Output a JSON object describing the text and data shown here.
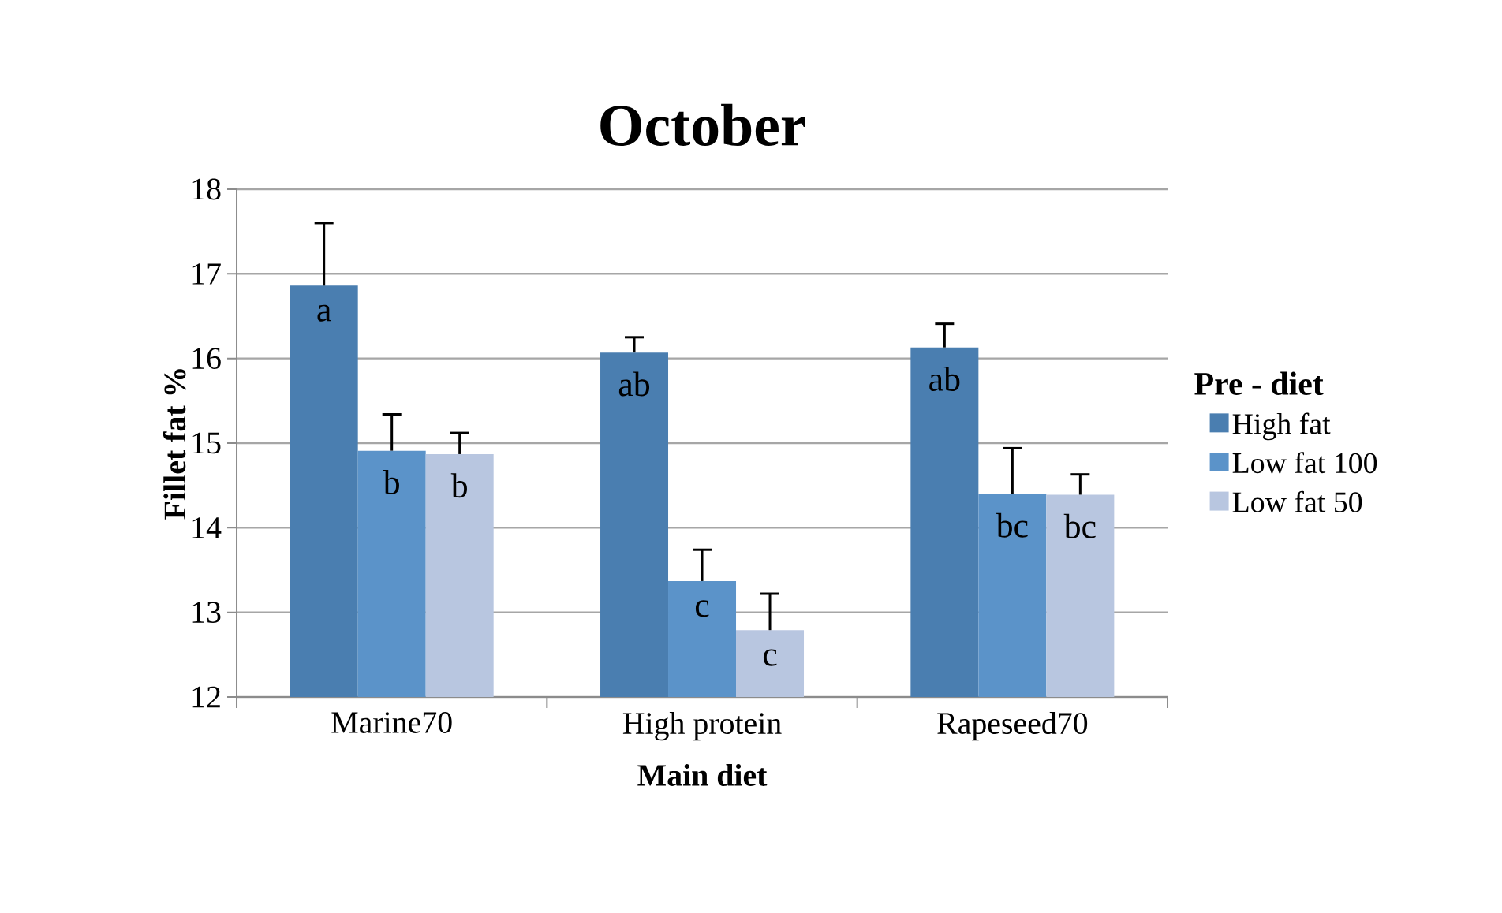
{
  "chart_data": {
    "type": "bar",
    "title": "October",
    "xlabel": "Main diet",
    "ylabel": "Fillet fat %",
    "legend_title": "Pre - diet",
    "categories": [
      "Marine70",
      "High protein",
      "Rapeseed70"
    ],
    "series": [
      {
        "name": "High fat",
        "color": "#4a7eb0",
        "values": [
          16.86,
          16.07,
          16.13
        ],
        "errors": [
          [
            16.86,
            17.6
          ],
          [
            16.07,
            16.25
          ],
          [
            16.13,
            16.41
          ]
        ],
        "value_labels": [
          "a",
          "ab",
          "ab"
        ]
      },
      {
        "name": "Low fat 100",
        "color": "#5b93c9",
        "values": [
          14.91,
          13.37,
          14.4
        ],
        "errors": [
          [
            14.91,
            15.34
          ],
          [
            13.37,
            13.74
          ],
          [
            14.4,
            14.94
          ]
        ],
        "value_labels": [
          "b",
          "c",
          "bc"
        ]
      },
      {
        "name": "Low fat 50",
        "color": "#b8c6e0",
        "values": [
          14.87,
          12.79,
          14.39
        ],
        "errors": [
          [
            14.87,
            15.12
          ],
          [
            12.79,
            13.22
          ],
          [
            14.39,
            14.63
          ]
        ],
        "value_labels": [
          "b",
          "c",
          "bc"
        ]
      }
    ],
    "ylim": [
      12,
      18
    ],
    "yticks": [
      12,
      13,
      14,
      15,
      16,
      17,
      18
    ],
    "grid": "y",
    "legend": "right"
  }
}
